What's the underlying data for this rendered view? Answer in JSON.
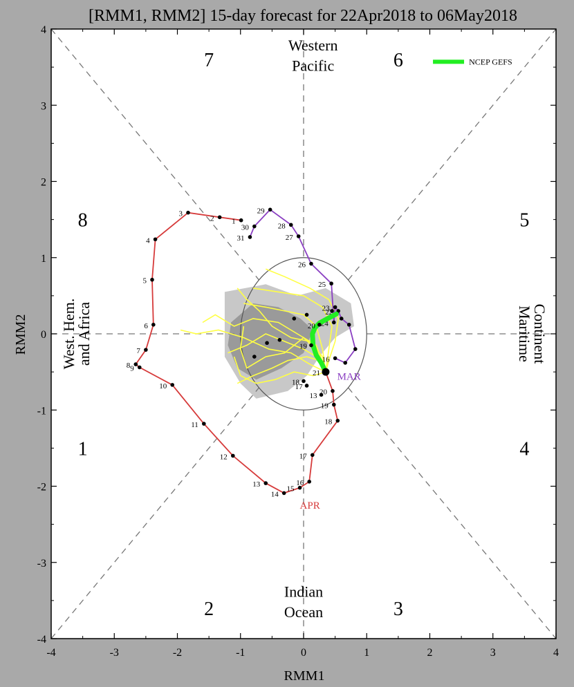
{
  "chart_data": {
    "type": "scatter",
    "title": "[RMM1, RMM2] 15-day forecast for 22Apr2018 to 06May2018",
    "xlabel": "RMM1",
    "ylabel": "RMM2",
    "xlim": [
      -4,
      4
    ],
    "ylim": [
      -4,
      4
    ],
    "x_ticks": [
      "-4",
      "-3",
      "-2",
      "-1",
      "0",
      "1",
      "2",
      "3",
      "4"
    ],
    "y_ticks": [
      "-4",
      "-3",
      "-2",
      "-1",
      "0",
      "1",
      "2",
      "3",
      "4"
    ],
    "phase_labels": [
      {
        "text": "1",
        "x": -3.5,
        "y": -1.5
      },
      {
        "text": "2",
        "x": -1.5,
        "y": -3.6
      },
      {
        "text": "3",
        "x": 1.5,
        "y": -3.6
      },
      {
        "text": "4",
        "x": 3.5,
        "y": -1.5
      },
      {
        "text": "5",
        "x": 3.5,
        "y": 1.5
      },
      {
        "text": "6",
        "x": 1.5,
        "y": 3.6
      },
      {
        "text": "7",
        "x": -1.5,
        "y": 3.6
      },
      {
        "text": "8",
        "x": -3.5,
        "y": 1.5
      }
    ],
    "region_labels": {
      "top": [
        "Western",
        "Pacific"
      ],
      "bottom": [
        "Indian",
        "Ocean"
      ],
      "left": [
        "West. Hem.",
        "and Africa"
      ],
      "right": [
        "Maritime",
        "Continent"
      ]
    },
    "legend": {
      "label": "NCEP GEFS",
      "color": "#22ee22",
      "position": "top-right"
    },
    "colors": {
      "mar": "#8a3fc2",
      "apr": "#d63a3a",
      "ensemble": "#ffff44",
      "mean": "#22ee22",
      "spread_light": "#c8c8c8",
      "spread_dark": "#9a9a9a"
    },
    "series": [
      {
        "name": "MAR",
        "label": "MAR",
        "points": [
          {
            "d": "16",
            "x": 0.5,
            "y": -0.32
          },
          {
            "d": "",
            "x": 0.66,
            "y": -0.38
          },
          {
            "d": "",
            "x": 0.82,
            "y": -0.2
          },
          {
            "d": "",
            "x": 0.72,
            "y": 0.12
          },
          {
            "d": "",
            "x": 0.6,
            "y": 0.2
          },
          {
            "d": "22",
            "x": 0.55,
            "y": 0.3
          },
          {
            "d": "23",
            "x": 0.5,
            "y": 0.35
          },
          {
            "d": "24",
            "x": 0.48,
            "y": 0.15
          },
          {
            "d": "25",
            "x": 0.44,
            "y": 0.66
          },
          {
            "d": "26",
            "x": 0.12,
            "y": 0.92
          },
          {
            "d": "27",
            "x": -0.08,
            "y": 1.28
          },
          {
            "d": "28",
            "x": -0.2,
            "y": 1.43
          },
          {
            "d": "29",
            "x": -0.53,
            "y": 1.63
          },
          {
            "d": "30",
            "x": -0.78,
            "y": 1.41
          },
          {
            "d": "31",
            "x": -0.85,
            "y": 1.27
          }
        ]
      },
      {
        "name": "APR",
        "label": "APR",
        "points": [
          {
            "d": "1",
            "x": -0.99,
            "y": 1.49
          },
          {
            "d": "2",
            "x": -1.33,
            "y": 1.53
          },
          {
            "d": "3",
            "x": -1.83,
            "y": 1.59
          },
          {
            "d": "4",
            "x": -2.35,
            "y": 1.24
          },
          {
            "d": "5",
            "x": -2.4,
            "y": 0.71
          },
          {
            "d": "6",
            "x": -2.38,
            "y": 0.12
          },
          {
            "d": "7",
            "x": -2.5,
            "y": -0.21
          },
          {
            "d": "8",
            "x": -2.66,
            "y": -0.4
          },
          {
            "d": "9",
            "x": -2.6,
            "y": -0.44
          },
          {
            "d": "10",
            "x": -2.08,
            "y": -0.67
          },
          {
            "d": "11",
            "x": -1.58,
            "y": -1.18
          },
          {
            "d": "12",
            "x": -1.12,
            "y": -1.6
          },
          {
            "d": "13",
            "x": -0.6,
            "y": -1.96
          },
          {
            "d": "14",
            "x": -0.31,
            "y": -2.09
          },
          {
            "d": "15",
            "x": -0.06,
            "y": -2.02
          },
          {
            "d": "16",
            "x": 0.09,
            "y": -1.94
          },
          {
            "d": "17",
            "x": 0.14,
            "y": -1.59
          },
          {
            "d": "18",
            "x": 0.54,
            "y": -1.14
          },
          {
            "d": "19",
            "x": 0.48,
            "y": -0.93
          },
          {
            "d": "20",
            "x": 0.46,
            "y": -0.75
          },
          {
            "d": "21",
            "x": 0.35,
            "y": -0.5
          }
        ]
      }
    ],
    "forecast_mean": [
      {
        "d": "21",
        "x": 0.35,
        "y": -0.5
      },
      {
        "d": "",
        "x": 0.28,
        "y": -0.38
      },
      {
        "d": "",
        "x": 0.2,
        "y": -0.28
      },
      {
        "d": "",
        "x": 0.15,
        "y": -0.15
      },
      {
        "d": "",
        "x": 0.14,
        "y": 0.0
      },
      {
        "d": "",
        "x": 0.18,
        "y": 0.08
      },
      {
        "d": "",
        "x": 0.25,
        "y": 0.14
      },
      {
        "d": "",
        "x": 0.38,
        "y": 0.2
      },
      {
        "d": "",
        "x": 0.52,
        "y": 0.26
      }
    ],
    "forecast_points": [
      {
        "d": "18",
        "x": 0.0,
        "y": -0.62
      },
      {
        "d": "17",
        "x": 0.05,
        "y": -0.68
      },
      {
        "d": "13",
        "x": 0.28,
        "y": -0.8
      },
      {
        "d": "19",
        "x": 0.12,
        "y": -0.15
      },
      {
        "d": "20",
        "x": 0.25,
        "y": 0.12
      },
      {
        "d": "",
        "x": -0.15,
        "y": 0.2
      },
      {
        "d": "",
        "x": -0.38,
        "y": -0.08
      },
      {
        "d": "",
        "x": -0.58,
        "y": -0.12
      },
      {
        "d": "",
        "x": -0.78,
        "y": -0.3
      },
      {
        "d": "",
        "x": 0.05,
        "y": 0.25
      },
      {
        "d": "",
        "x": 0.45,
        "y": 0.3
      }
    ],
    "ensemble_members": [
      [
        [
          0.35,
          -0.5
        ],
        [
          0.2,
          -0.3
        ],
        [
          0.0,
          -0.2
        ],
        [
          -0.3,
          -0.1
        ],
        [
          -0.6,
          0.0
        ],
        [
          -0.9,
          -0.15
        ],
        [
          -1.2,
          -0.25
        ]
      ],
      [
        [
          0.35,
          -0.5
        ],
        [
          0.3,
          -0.2
        ],
        [
          0.2,
          0.1
        ],
        [
          0.0,
          0.25
        ],
        [
          -0.3,
          0.3
        ],
        [
          -0.6,
          0.35
        ],
        [
          -0.95,
          0.4
        ]
      ],
      [
        [
          0.35,
          -0.5
        ],
        [
          0.25,
          -0.35
        ],
        [
          0.05,
          -0.3
        ],
        [
          -0.25,
          -0.35
        ],
        [
          -0.5,
          -0.45
        ],
        [
          -0.8,
          -0.55
        ],
        [
          -1.05,
          -0.65
        ]
      ],
      [
        [
          0.35,
          -0.5
        ],
        [
          0.4,
          -0.2
        ],
        [
          0.45,
          0.1
        ],
        [
          0.3,
          0.35
        ],
        [
          0.0,
          0.5
        ],
        [
          -0.4,
          0.55
        ],
        [
          -0.8,
          0.6
        ]
      ],
      [
        [
          0.35,
          -0.5
        ],
        [
          0.1,
          -0.4
        ],
        [
          -0.2,
          -0.25
        ],
        [
          -0.55,
          -0.2
        ],
        [
          -0.95,
          -0.05
        ],
        [
          -1.35,
          0.05
        ],
        [
          -1.7,
          0.0
        ],
        [
          -1.95,
          0.05
        ]
      ],
      [
        [
          0.35,
          -0.5
        ],
        [
          0.2,
          -0.15
        ],
        [
          -0.1,
          0.0
        ],
        [
          -0.4,
          0.15
        ],
        [
          -0.8,
          0.2
        ],
        [
          -1.1,
          0.1
        ],
        [
          -1.4,
          0.25
        ],
        [
          -1.6,
          0.15
        ]
      ],
      [
        [
          0.35,
          -0.5
        ],
        [
          0.3,
          -0.3
        ],
        [
          0.1,
          -0.1
        ],
        [
          -0.2,
          -0.05
        ],
        [
          -0.5,
          0.1
        ],
        [
          -0.7,
          0.3
        ],
        [
          -0.9,
          0.45
        ],
        [
          -1.05,
          0.6
        ]
      ],
      [
        [
          0.35,
          -0.5
        ],
        [
          0.15,
          -0.55
        ],
        [
          -0.15,
          -0.5
        ],
        [
          -0.45,
          -0.6
        ],
        [
          -0.75,
          -0.65
        ],
        [
          -1.0,
          -0.55
        ],
        [
          -1.1,
          -0.3
        ]
      ],
      [
        [
          0.35,
          -0.5
        ],
        [
          0.4,
          -0.35
        ],
        [
          0.5,
          -0.1
        ],
        [
          0.55,
          0.2
        ],
        [
          0.4,
          0.45
        ],
        [
          0.1,
          0.6
        ],
        [
          -0.3,
          0.75
        ],
        [
          -0.6,
          0.85
        ]
      ],
      [
        [
          0.35,
          -0.5
        ],
        [
          0.25,
          -0.25
        ],
        [
          0.0,
          -0.05
        ],
        [
          -0.3,
          -0.25
        ],
        [
          -0.6,
          -0.3
        ],
        [
          -0.9,
          -0.45
        ],
        [
          -1.0,
          -0.2
        ],
        [
          -0.95,
          0.1
        ]
      ]
    ]
  }
}
